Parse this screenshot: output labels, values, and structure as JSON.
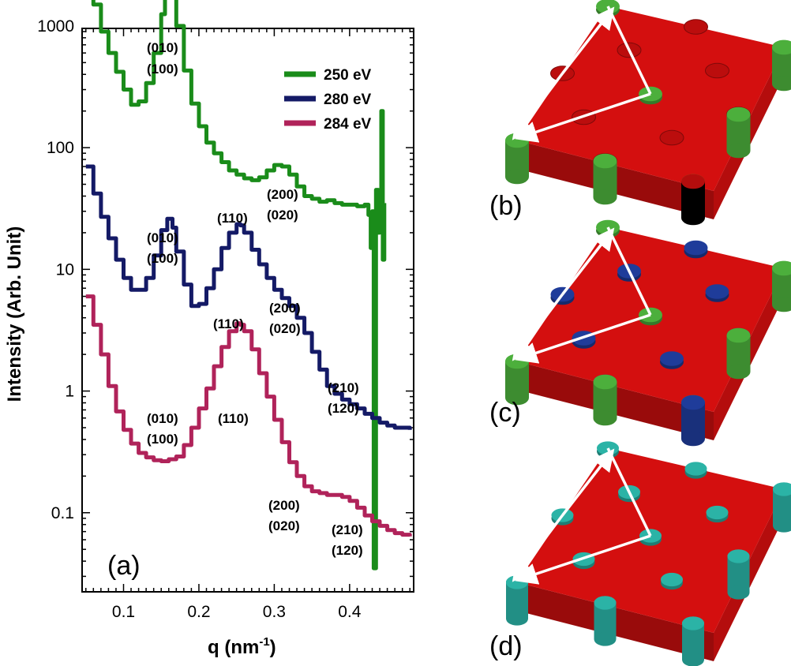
{
  "chart_data": {
    "type": "line",
    "panel_label": "(a)",
    "xlabel": "q (nm",
    "xlabel_sup": "-1",
    "xlabel_close": ")",
    "ylabel": "Intensity (Arb. Unit)",
    "xlim": [
      0.045,
      0.485
    ],
    "ylim_log10": [
      -1.65,
      2.98
    ],
    "x_ticks": [
      {
        "value": 0.1,
        "label": "0.1"
      },
      {
        "value": 0.2,
        "label": "0.2"
      },
      {
        "value": 0.3,
        "label": "0.3"
      },
      {
        "value": 0.4,
        "label": "0.4"
      }
    ],
    "y_ticks": [
      {
        "value": 1000,
        "label": "1000"
      },
      {
        "value": 100,
        "label": "100"
      },
      {
        "value": 10,
        "label": "10"
      },
      {
        "value": 1,
        "label": "1"
      },
      {
        "value": 0.1,
        "label": "0.1"
      }
    ],
    "series": [
      {
        "name": "250 eV",
        "color": "#1a8c1a",
        "points": [
          [
            0.05,
            2100
          ],
          [
            0.06,
            1500
          ],
          [
            0.07,
            900
          ],
          [
            0.08,
            600
          ],
          [
            0.09,
            420
          ],
          [
            0.1,
            300
          ],
          [
            0.11,
            225
          ],
          [
            0.12,
            240
          ],
          [
            0.13,
            340
          ],
          [
            0.14,
            600
          ],
          [
            0.15,
            1250
          ],
          [
            0.155,
            1900
          ],
          [
            0.16,
            2150
          ],
          [
            0.165,
            1750
          ],
          [
            0.17,
            1000
          ],
          [
            0.18,
            430
          ],
          [
            0.19,
            230
          ],
          [
            0.2,
            150
          ],
          [
            0.21,
            110
          ],
          [
            0.22,
            90
          ],
          [
            0.23,
            76
          ],
          [
            0.24,
            65
          ],
          [
            0.25,
            60
          ],
          [
            0.26,
            56
          ],
          [
            0.27,
            54
          ],
          [
            0.28,
            57
          ],
          [
            0.29,
            65
          ],
          [
            0.3,
            72
          ],
          [
            0.31,
            70
          ],
          [
            0.32,
            60
          ],
          [
            0.33,
            48
          ],
          [
            0.34,
            40
          ],
          [
            0.35,
            38
          ],
          [
            0.36,
            36
          ],
          [
            0.37,
            37
          ],
          [
            0.38,
            35
          ],
          [
            0.39,
            34
          ],
          [
            0.4,
            34
          ],
          [
            0.41,
            33
          ],
          [
            0.42,
            34
          ],
          [
            0.425,
            28
          ],
          [
            0.428,
            15
          ],
          [
            0.43,
            30
          ],
          [
            0.432,
            0.035
          ],
          [
            0.435,
            45
          ],
          [
            0.438,
            20
          ],
          [
            0.44,
            40
          ],
          [
            0.442,
            200
          ],
          [
            0.444,
            12
          ],
          [
            0.446,
            35
          ]
        ]
      },
      {
        "name": "280 eV",
        "color": "#141a66",
        "points": [
          [
            0.05,
            70
          ],
          [
            0.06,
            42
          ],
          [
            0.07,
            27
          ],
          [
            0.08,
            18
          ],
          [
            0.09,
            12
          ],
          [
            0.1,
            8.5
          ],
          [
            0.11,
            6.8
          ],
          [
            0.12,
            6.8
          ],
          [
            0.13,
            8.5
          ],
          [
            0.14,
            13
          ],
          [
            0.15,
            21
          ],
          [
            0.158,
            26
          ],
          [
            0.165,
            22
          ],
          [
            0.17,
            14
          ],
          [
            0.18,
            7.5
          ],
          [
            0.19,
            5.0
          ],
          [
            0.2,
            5.2
          ],
          [
            0.21,
            7.0
          ],
          [
            0.22,
            10
          ],
          [
            0.23,
            15
          ],
          [
            0.24,
            20
          ],
          [
            0.25,
            23.5
          ],
          [
            0.255,
            23
          ],
          [
            0.26,
            20
          ],
          [
            0.27,
            14.5
          ],
          [
            0.28,
            11
          ],
          [
            0.29,
            8.5
          ],
          [
            0.3,
            6.8
          ],
          [
            0.31,
            5.8
          ],
          [
            0.32,
            5.0
          ],
          [
            0.33,
            4.0
          ],
          [
            0.34,
            3.0
          ],
          [
            0.35,
            2.1
          ],
          [
            0.36,
            1.5
          ],
          [
            0.37,
            1.1
          ],
          [
            0.38,
            0.95
          ],
          [
            0.39,
            0.85
          ],
          [
            0.4,
            0.78
          ],
          [
            0.41,
            0.72
          ],
          [
            0.42,
            0.65
          ],
          [
            0.43,
            0.6
          ],
          [
            0.44,
            0.55
          ],
          [
            0.45,
            0.52
          ],
          [
            0.46,
            0.5
          ],
          [
            0.47,
            0.5
          ],
          [
            0.48,
            0.48
          ]
        ]
      },
      {
        "name": "284 eV",
        "color": "#b0235a",
        "points": [
          [
            0.05,
            6.0
          ],
          [
            0.06,
            3.5
          ],
          [
            0.07,
            2.0
          ],
          [
            0.08,
            1.1
          ],
          [
            0.09,
            0.68
          ],
          [
            0.1,
            0.48
          ],
          [
            0.11,
            0.37
          ],
          [
            0.12,
            0.31
          ],
          [
            0.13,
            0.285
          ],
          [
            0.14,
            0.27
          ],
          [
            0.15,
            0.265
          ],
          [
            0.16,
            0.275
          ],
          [
            0.17,
            0.29
          ],
          [
            0.18,
            0.36
          ],
          [
            0.19,
            0.5
          ],
          [
            0.2,
            0.72
          ],
          [
            0.21,
            1.05
          ],
          [
            0.22,
            1.6
          ],
          [
            0.23,
            2.3
          ],
          [
            0.24,
            3.1
          ],
          [
            0.25,
            3.6
          ],
          [
            0.255,
            3.5
          ],
          [
            0.26,
            3.1
          ],
          [
            0.27,
            2.2
          ],
          [
            0.28,
            1.4
          ],
          [
            0.29,
            0.9
          ],
          [
            0.3,
            0.58
          ],
          [
            0.31,
            0.38
          ],
          [
            0.32,
            0.26
          ],
          [
            0.33,
            0.2
          ],
          [
            0.34,
            0.165
          ],
          [
            0.35,
            0.15
          ],
          [
            0.36,
            0.145
          ],
          [
            0.37,
            0.14
          ],
          [
            0.38,
            0.14
          ],
          [
            0.39,
            0.135
          ],
          [
            0.4,
            0.125
          ],
          [
            0.41,
            0.11
          ],
          [
            0.42,
            0.095
          ],
          [
            0.43,
            0.085
          ],
          [
            0.44,
            0.078
          ],
          [
            0.45,
            0.072
          ],
          [
            0.46,
            0.068
          ],
          [
            0.47,
            0.066
          ],
          [
            0.48,
            0.064
          ]
        ]
      }
    ],
    "annotations": [
      {
        "text": "(010)",
        "series": "250 eV"
      },
      {
        "text": "(100)",
        "series": "250 eV"
      },
      {
        "text": "(110)",
        "series": "250 eV"
      },
      {
        "text": "(200)",
        "series": "250 eV"
      },
      {
        "text": "(020)",
        "series": "250 eV"
      },
      {
        "text": "(010)",
        "series": "280 eV"
      },
      {
        "text": "(100)",
        "series": "280 eV"
      },
      {
        "text": "(110)",
        "series": "280 eV"
      },
      {
        "text": "(200)",
        "series": "280 eV"
      },
      {
        "text": "(020)",
        "series": "280 eV"
      },
      {
        "text": "(210)",
        "series": "280 eV"
      },
      {
        "text": "(120)",
        "series": "280 eV"
      },
      {
        "text": "(010)",
        "series": "284 eV"
      },
      {
        "text": "(100)",
        "series": "284 eV"
      },
      {
        "text": "(110)",
        "series": "284 eV"
      },
      {
        "text": "(200)",
        "series": "284 eV"
      },
      {
        "text": "(020)",
        "series": "284 eV"
      },
      {
        "text": "(210)",
        "series": "284 eV"
      },
      {
        "text": "(120)",
        "series": "284 eV"
      }
    ]
  },
  "lattice_panels": [
    {
      "label": "(b)",
      "plate_color": "#d40f0f",
      "peg_colors": [
        "#4caf3c",
        "#c81414"
      ]
    },
    {
      "label": "(c)",
      "plate_color": "#d40f0f",
      "peg_colors": [
        "#4caf3c",
        "#1f3c9a"
      ]
    },
    {
      "label": "(d)",
      "plate_color": "#d40f0f",
      "peg_colors": [
        "#2bb3a6",
        "#2bb3a6"
      ]
    }
  ]
}
